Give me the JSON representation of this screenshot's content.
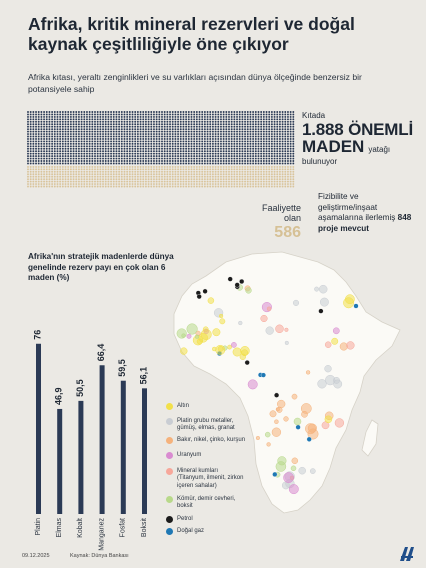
{
  "title": "Afrika, kritik mineral rezervleri ve doğal kaynak çeşitliliğiyle öne çıkıyor",
  "subtitle": "Afrika kıtası, yeraltı zenginlikleri ve su varlıkları açısından dünya ölçeğinde benzersiz bir potansiyele sahip",
  "mines": {
    "prefix": "Kıtada",
    "total_value": "1.888 ÖNEMLİ",
    "total_word": "MADEN",
    "suffix_1": "yatağı",
    "suffix_2": "bulunuyor",
    "active_label": "Faaliyette olan",
    "active_value": "586",
    "total_count": 1888,
    "active_count": 586,
    "colors": {
      "total": "#2b3a55",
      "active": "#d9c49b"
    }
  },
  "projects": {
    "text_1": "Fizibilite ve geliştirme/inşaat aşamalarına ilerlemiş",
    "count": "848 proje",
    "text_2": "mevcut"
  },
  "chart_data": {
    "type": "bar",
    "title": "Afrika'nın stratejik madenlerde dünya genelinde rezerv payı en çok olan 6 maden (%)",
    "categories": [
      "Platin",
      "Elmas",
      "Kobalt",
      "Manganez",
      "Fosfat",
      "Boksit"
    ],
    "values": [
      76,
      46.9,
      50.5,
      66.4,
      59.5,
      56.1
    ],
    "labels": [
      "76",
      "46,9",
      "50,5",
      "66,4",
      "59,5",
      "56,1"
    ],
    "ylim": [
      0,
      100
    ],
    "bar_color": "#2b3a55"
  },
  "legend": [
    {
      "label": "Altın",
      "color": "#f2e04a"
    },
    {
      "label": "Platin grubu metaller,\ngümüş, elmas, granat",
      "color": "#c9cdd3"
    },
    {
      "label": "Bakır, nikel, çinko, kurşun",
      "color": "#f5b27c"
    },
    {
      "label": "Uranyum",
      "color": "#d98bd0"
    },
    {
      "label": "Mineral kumları\n(Titanyum, ilmenit, zirkon\niçeren sahalar)",
      "color": "#f7a79a"
    },
    {
      "label": "Kömür, demir cevheri,\nboksit",
      "color": "#b8d98a"
    },
    {
      "label": "Petrol",
      "color": "#1c1c1c"
    },
    {
      "label": "Doğal gaz",
      "color": "#1f78b4"
    }
  ],
  "footer": {
    "date": "09.12.2025",
    "source": "Kaynak: Dünya Bankası"
  }
}
